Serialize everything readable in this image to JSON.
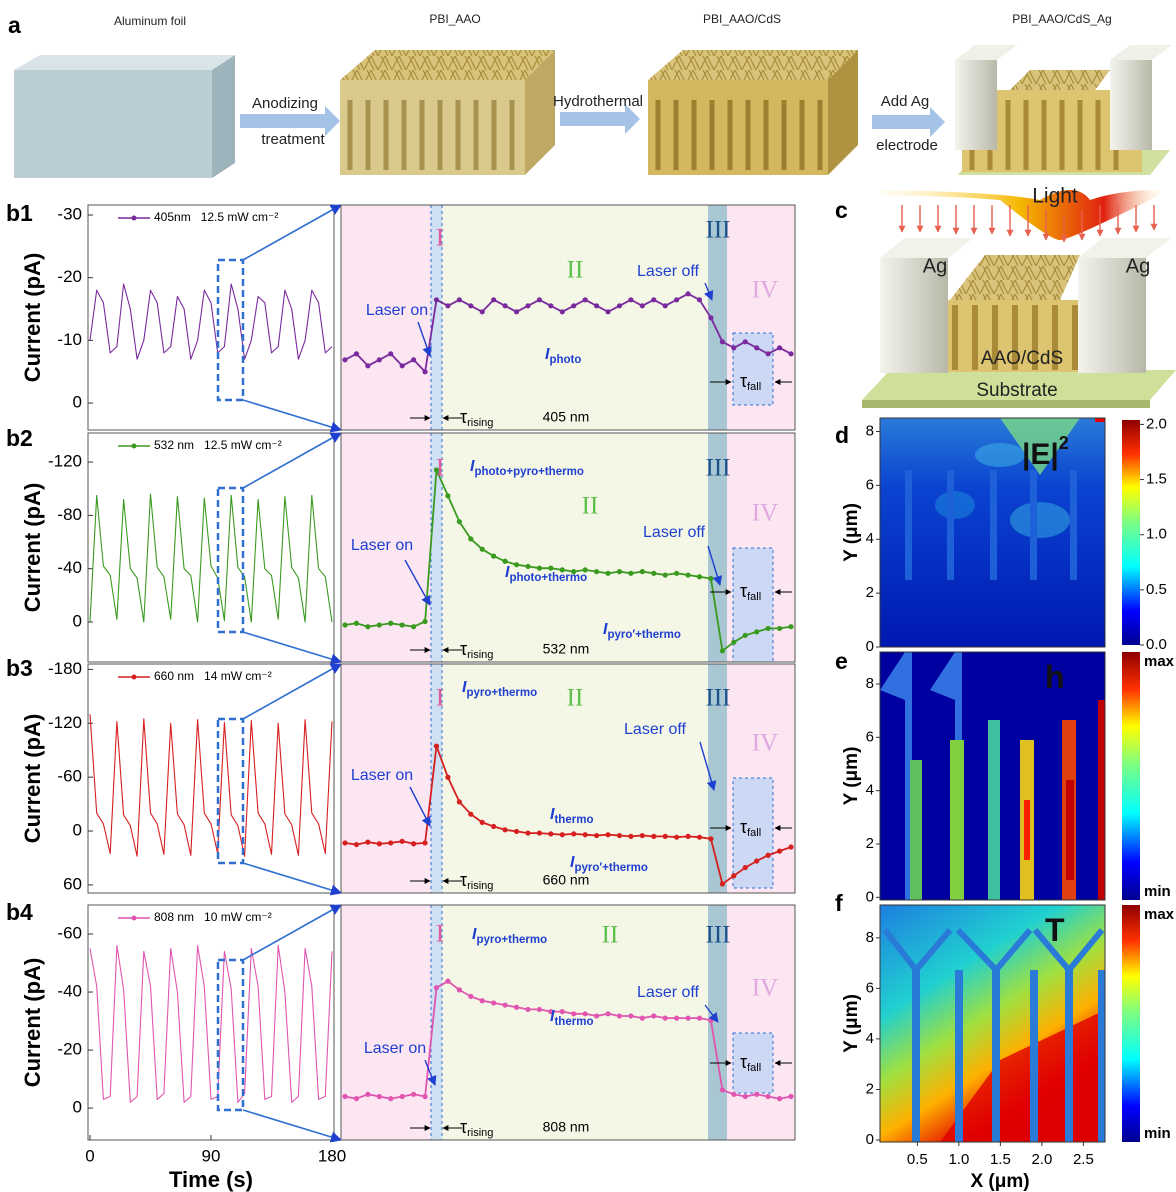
{
  "panel_labels": {
    "a": "a",
    "b1": "b1",
    "b2": "b2",
    "b3": "b3",
    "b4": "b4",
    "c": "c",
    "d": "d",
    "e": "e",
    "f": "f"
  },
  "panel_a": {
    "steps": [
      "Aluminum foil",
      "PBI_AAO",
      "PBI_AAO/CdS",
      "PBI_AAO/CdS_Ag"
    ],
    "arrows": [
      [
        "Anodizing",
        "treatment"
      ],
      [
        "Hydrothermal"
      ],
      [
        "Add Ag",
        "electrode"
      ]
    ]
  },
  "chart_data": [
    {
      "type": "line",
      "y_label": "Current (pA)",
      "x": [
        0,
        5,
        10,
        15,
        20,
        25,
        30,
        35,
        40,
        45,
        50,
        55,
        60,
        65,
        70,
        75,
        80,
        85,
        90,
        95,
        100,
        105,
        110,
        115,
        120,
        125,
        130,
        135,
        140,
        145,
        150,
        155,
        160,
        165,
        170,
        175,
        180
      ],
      "xlim": [
        0,
        180
      ],
      "ylim": [
        4.3,
        -31.6
      ],
      "yticks": [
        -30,
        -20,
        -10,
        0
      ],
      "series": [
        {
          "name": "405nm   12.5 mW cm⁻²",
          "color": "#7b2a9e",
          "values": [
            -10,
            -18,
            -16,
            -8,
            -9,
            -19,
            -15,
            -7,
            -10,
            -18,
            -16,
            -8,
            -9,
            -17,
            -15,
            -7,
            -10,
            -18,
            -16,
            -8,
            -9,
            -19,
            -15,
            -7,
            -10,
            -17,
            -16,
            -8,
            -9,
            -18,
            -15,
            -7,
            -10,
            -18,
            -16,
            -8,
            -9
          ]
        }
      ]
    },
    {
      "type": "line",
      "y_label": "Current (pA)",
      "x": [
        0,
        5,
        10,
        15,
        20,
        25,
        30,
        35,
        40,
        45,
        50,
        55,
        60,
        65,
        70,
        75,
        80,
        85,
        90,
        95,
        100,
        105,
        110,
        115,
        120,
        125,
        130,
        135,
        140,
        145,
        150,
        155,
        160,
        165,
        170,
        175,
        180
      ],
      "xlim": [
        0,
        180
      ],
      "ylim": [
        30,
        -141.8
      ],
      "yticks": [
        -120,
        -80,
        -40,
        0
      ],
      "series": [
        {
          "name": "532 nm   12.5 mW cm⁻²",
          "color": "#3a9a1f",
          "values": [
            0,
            -95,
            -42,
            -35,
            -2,
            -92,
            -40,
            -33,
            0,
            -96,
            -41,
            -34,
            -2,
            -94,
            -40,
            -35,
            0,
            -93,
            -42,
            -33,
            -1,
            -95,
            -41,
            -34,
            0,
            -92,
            -40,
            -35,
            -2,
            -94,
            -41,
            -33,
            0,
            -95,
            -40,
            -34,
            0
          ]
        }
      ]
    },
    {
      "type": "line",
      "y_label": "Current (pA)",
      "x": [
        0,
        5,
        10,
        15,
        20,
        25,
        30,
        35,
        40,
        45,
        50,
        55,
        60,
        65,
        70,
        75,
        80,
        85,
        90,
        95,
        100,
        105,
        110,
        115,
        120,
        125,
        130,
        135,
        140,
        145,
        150,
        155,
        160,
        165,
        170,
        175,
        180
      ],
      "xlim": [
        0,
        180
      ],
      "ylim": [
        69,
        -186
      ],
      "yticks": [
        -180,
        -120,
        -60,
        0,
        60
      ],
      "series": [
        {
          "name": "660 nm   14 mW cm⁻²",
          "color": "#d61f1f",
          "values": [
            -130,
            -20,
            -8,
            25,
            -122,
            -18,
            -6,
            28,
            -125,
            -20,
            -8,
            26,
            -120,
            -19,
            -7,
            27,
            -124,
            -20,
            -8,
            25,
            -121,
            -18,
            -6,
            28,
            -123,
            -20,
            -8,
            26,
            -120,
            -19,
            -7,
            27,
            -124,
            -20,
            -8,
            25,
            -122
          ]
        }
      ]
    },
    {
      "type": "line",
      "y_label": "Current (pA)",
      "x_label": "Time (s)",
      "x": [
        0,
        5,
        10,
        15,
        20,
        25,
        30,
        35,
        40,
        45,
        50,
        55,
        60,
        65,
        70,
        75,
        80,
        85,
        90,
        95,
        100,
        105,
        110,
        115,
        120,
        125,
        130,
        135,
        140,
        145,
        150,
        155,
        160,
        165,
        170,
        175,
        180
      ],
      "xlim": [
        0,
        180
      ],
      "xticks": [
        0,
        90,
        180
      ],
      "ylim": [
        11,
        -70
      ],
      "yticks": [
        -60,
        -40,
        -20,
        0
      ],
      "series": [
        {
          "name": "808 nm   10 mW cm⁻²",
          "color": "#e055b0",
          "values": [
            -55,
            -42,
            -3,
            -4,
            -56,
            -41,
            -2,
            -4,
            -54,
            -42,
            -3,
            -5,
            -55,
            -40,
            -2,
            -4,
            -56,
            -42,
            -3,
            -4,
            -54,
            -41,
            -2,
            -5,
            -55,
            -42,
            -3,
            -4,
            -56,
            -40,
            -2,
            -4,
            -55,
            -42,
            -3,
            -4,
            -54
          ]
        }
      ]
    },
    {
      "type": "line",
      "ylim": [
        5.7,
        -31.8
      ],
      "regions": [
        "I",
        "II",
        "III",
        "IV"
      ],
      "laser_on": "Laser on",
      "laser_off": "Laser off",
      "tau_rising": {
        "symbol": "τ",
        "sub": "rising"
      },
      "tau_fall": {
        "symbol": "τ",
        "sub": "fall"
      },
      "wavelength": "405 nm",
      "current_labels": [
        {
          "symbol": "I",
          "sub": "photo"
        }
      ],
      "series": [
        {
          "color": "#7b2a9e",
          "values": [
            -6,
            -7,
            -5,
            -6,
            -7,
            -5,
            -6,
            -4,
            -16,
            -15,
            -16,
            -15,
            -14,
            -16,
            -15,
            -14,
            -15,
            -16,
            -15,
            -14,
            -15,
            -16,
            -15,
            -14,
            -15,
            -16,
            -15,
            -16,
            -15,
            -16,
            -17,
            -16,
            -13,
            -9,
            -8,
            -9,
            -8,
            -7,
            -8,
            -7
          ]
        }
      ]
    },
    {
      "type": "line",
      "ylim": [
        21.5,
        -111.5
      ],
      "regions": [
        "I",
        "II",
        "III",
        "IV"
      ],
      "laser_on": "Laser on",
      "laser_off": "Laser off",
      "tau_rising": {
        "symbol": "τ",
        "sub": "rising"
      },
      "tau_fall": {
        "symbol": "τ",
        "sub": "fall"
      },
      "wavelength": "532 nm",
      "current_labels": [
        {
          "symbol": "I",
          "sub": "photo+pyro+thermo"
        },
        {
          "symbol": "I",
          "sub": "photo+thermo"
        },
        {
          "symbol": "I",
          "sub": "pyro′+thermo"
        }
      ],
      "series": [
        {
          "color": "#3a9a1f",
          "values": [
            0,
            -1,
            1,
            0,
            -1,
            0,
            1,
            -2,
            -90,
            -75,
            -60,
            -50,
            -44,
            -40,
            -37,
            -35,
            -34,
            -33,
            -33,
            -32,
            -31,
            -32,
            -31,
            -30,
            -31,
            -30,
            -31,
            -30,
            -29,
            -30,
            -29,
            -28,
            -27,
            15,
            10,
            6,
            4,
            2,
            2,
            1
          ]
        }
      ]
    },
    {
      "type": "line",
      "ylim": [
        61,
        -218
      ],
      "regions": [
        "I",
        "II",
        "III",
        "IV"
      ],
      "laser_on": "Laser on",
      "laser_off": "Laser off",
      "tau_rising": {
        "symbol": "τ",
        "sub": "rising"
      },
      "tau_fall": {
        "symbol": "τ",
        "sub": "fall"
      },
      "wavelength": "660 nm",
      "current_labels": [
        {
          "symbol": "I",
          "sub": "pyro+thermo"
        },
        {
          "symbol": "I",
          "sub": "thermo"
        },
        {
          "symbol": "I",
          "sub": "pyro′+thermo"
        }
      ],
      "series": [
        {
          "color": "#d61f1f",
          "values": [
            0,
            2,
            -1,
            1,
            0,
            -2,
            1,
            0,
            -118,
            -80,
            -50,
            -35,
            -25,
            -20,
            -16,
            -14,
            -12,
            -12,
            -11,
            -10,
            -11,
            -10,
            -9,
            -10,
            -9,
            -8,
            -9,
            -8,
            -8,
            -7,
            -8,
            -7,
            -5,
            50,
            40,
            30,
            22,
            15,
            10,
            5
          ]
        }
      ]
    },
    {
      "type": "line",
      "ylim": [
        18,
        -90
      ],
      "regions": [
        "I",
        "II",
        "III",
        "IV"
      ],
      "laser_on": "Laser on",
      "laser_off": "Laser off",
      "tau_rising": {
        "symbol": "τ",
        "sub": "rising"
      },
      "tau_fall": {
        "symbol": "τ",
        "sub": "fall"
      },
      "wavelength": "808 nm",
      "current_labels": [
        {
          "symbol": "I",
          "sub": "pyro+thermo"
        },
        {
          "symbol": "I",
          "sub": "thermo"
        }
      ],
      "series": [
        {
          "color": "#e055b0",
          "values": [
            -2,
            -1,
            -3,
            -2,
            -1,
            -2,
            -3,
            -2,
            -52,
            -55,
            -51,
            -48,
            -46,
            -45,
            -44,
            -43,
            -42,
            -42,
            -41,
            -41,
            -40,
            -40,
            -39,
            -40,
            -39,
            -39,
            -38,
            -39,
            -38,
            -38,
            -38,
            -38,
            -37,
            -5,
            -3,
            -2,
            -3,
            -2,
            -1,
            -2
          ]
        }
      ]
    }
  ],
  "panel_c": {
    "light": "Light",
    "electrodes": [
      "Ag",
      "Ag"
    ],
    "film": "AAO/CdS",
    "substrate": "Substrate"
  },
  "maps": [
    {
      "y_label": "Y (μm)",
      "ylim": [
        0,
        8.5
      ],
      "yticks": [
        0,
        2,
        4,
        6,
        8
      ],
      "field_label": {
        "text": "|E|",
        "sup": "2"
      },
      "colorbar": {
        "clim": [
          0,
          2.04
        ],
        "ticks": [
          {
            "value": 0,
            "label": "0.0"
          },
          0.5,
          {
            "value": 1,
            "label": "1.0"
          },
          1.5,
          {
            "value": 2,
            "label": "2.0"
          }
        ]
      }
    },
    {
      "y_label": "Y (μm)",
      "ylim": [
        -0.1,
        9.2
      ],
      "yticks": [
        0,
        2,
        4,
        6,
        8
      ],
      "field_label": {
        "text": "h"
      },
      "colorbar": {
        "labels": [
          "max",
          "min"
        ]
      }
    },
    {
      "y_label": "Y (μm)",
      "x_label": "X (μm)",
      "ylim": [
        -0.08,
        9.3
      ],
      "yticks": [
        0,
        2,
        4,
        6,
        8
      ],
      "xlim": [
        0.05,
        2.76
      ],
      "xticks": [
        0.5,
        {
          "value": 1,
          "label": "1.0"
        },
        1.5,
        {
          "value": 2,
          "label": "2.0"
        },
        2.5
      ],
      "field_label": {
        "text": "T"
      },
      "colorbar": {
        "labels": [
          "max",
          "min"
        ]
      }
    }
  ]
}
